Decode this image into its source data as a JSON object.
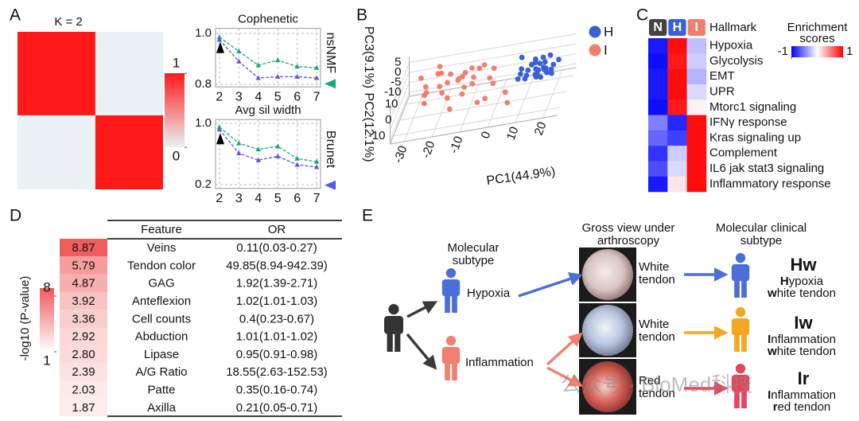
{
  "panel_labels": [
    "A",
    "B",
    "C",
    "D",
    "E"
  ],
  "chart_data": [
    {
      "type": "heatmap",
      "title": "K = 2",
      "values": [
        [
          1,
          0
        ],
        [
          0,
          1
        ]
      ],
      "colors": [
        "#e9f2f5",
        "#ff1a1a"
      ],
      "clim": [
        0,
        1
      ],
      "colorbar_ticks": [
        0,
        1
      ]
    },
    {
      "type": "line",
      "title": "Cophenetic",
      "x": [
        2,
        3,
        4,
        5,
        6,
        7
      ],
      "xlim": [
        1.8,
        7.2
      ],
      "xticks": [
        2,
        3,
        4,
        5,
        6,
        7
      ],
      "ylim": [
        0.79,
        1.02
      ],
      "yticks": [
        0.8,
        {
          "value": 1,
          "label": "1.0"
        }
      ],
      "grid": true,
      "series": [
        {
          "name": "nsNMF",
          "color": "#17a878",
          "values": [
            0.985,
            0.93,
            0.875,
            0.895,
            0.87,
            0.865
          ]
        },
        {
          "color": "#5b57e0",
          "values": [
            0.975,
            0.89,
            0.825,
            0.83,
            0.83,
            0.825
          ]
        }
      ]
    },
    {
      "type": "line",
      "title": "Avg sil width",
      "x": [
        2,
        3,
        4,
        5,
        6,
        7
      ],
      "xlim": [
        1.8,
        7.2
      ],
      "xticks": [
        2,
        3,
        4,
        5,
        6,
        7
      ],
      "ylim": [
        0.15,
        1.05
      ],
      "yticks": [
        0.2,
        {
          "value": 1,
          "label": "1.0"
        }
      ],
      "grid": true,
      "series": [
        {
          "color": "#17a878",
          "values": [
            0.95,
            0.74,
            0.66,
            0.7,
            0.54,
            0.5
          ]
        },
        {
          "name": "Brunet",
          "color": "#5b57e0",
          "values": [
            0.92,
            0.61,
            0.52,
            0.57,
            0.46,
            0.43
          ]
        }
      ]
    },
    {
      "type": "scatter3d",
      "x_label": "PC1(44.9%)",
      "y_label": "PC2(12.1%)",
      "z_label": "PC3(9.1%)",
      "xlim": [
        -35,
        25
      ],
      "ylim": [
        -15,
        15
      ],
      "zlim": [
        -12,
        8
      ],
      "xticks": [
        -30,
        -20,
        -10,
        0,
        10,
        20
      ],
      "yticks": [
        -10,
        0,
        10
      ],
      "zticks": [
        -10,
        -5,
        0,
        5
      ],
      "series": [
        {
          "name": "H",
          "color": "#3a5fd6",
          "x": [
            12,
            15,
            18,
            10,
            14,
            16,
            20,
            8,
            11,
            13,
            17,
            19,
            9,
            15,
            12,
            14,
            16,
            18,
            21,
            10,
            13,
            17,
            11,
            15,
            19,
            7,
            14,
            16,
            12,
            20
          ],
          "y": [
            2,
            -3,
            5,
            0,
            6,
            -5,
            1,
            4,
            -2,
            3,
            -6,
            2,
            -1,
            7,
            -4,
            0,
            3,
            -2,
            5,
            -7,
            4,
            1,
            6,
            -3,
            -5,
            2,
            -1,
            4,
            8,
            -2
          ],
          "z": [
            3,
            1,
            4,
            -2,
            0,
            5,
            2,
            6,
            1,
            -3,
            2,
            -1,
            4,
            2,
            5,
            -2,
            0,
            3,
            1,
            6,
            -1,
            4,
            0,
            2,
            3,
            -3,
            6,
            -2,
            1,
            0
          ]
        },
        {
          "name": "I",
          "color": "#f07f6e",
          "x": [
            -28,
            -25,
            -22,
            -20,
            -18,
            -15,
            -12,
            -10,
            -8,
            -5,
            -3,
            -26,
            -23,
            -19,
            -16,
            -14,
            -11,
            -7,
            -4,
            -1,
            -24,
            -21,
            -17,
            -13,
            -9,
            -6,
            -2,
            -27,
            -15,
            -10,
            5,
            2
          ],
          "y": [
            3,
            -5,
            6,
            0,
            -8,
            4,
            -2,
            7,
            -4,
            2,
            -6,
            -1,
            8,
            5,
            -3,
            1,
            -7,
            3,
            6,
            -2,
            -6,
            2,
            -4,
            7,
            0,
            -5,
            4,
            6,
            -9,
            -8,
            -6,
            4
          ],
          "z": [
            5,
            2,
            -3,
            8,
            4,
            0,
            6,
            -2,
            3,
            7,
            -4,
            -5,
            2,
            -1,
            9,
            3,
            1,
            5,
            -3,
            0,
            4,
            10,
            -2,
            1,
            8,
            -6,
            3,
            -2,
            -4,
            5,
            -8,
            -10
          ]
        }
      ]
    },
    {
      "type": "heatmap",
      "title": "Hallmark",
      "columns": [
        "N",
        "H",
        "I"
      ],
      "column_colors": [
        "#444444",
        "#3a5fd6",
        "#f07f6e"
      ],
      "rows": [
        "Hypoxia",
        "Glycolysis",
        "EMT",
        "UPR",
        "Mtorc1 signaling",
        "IFNγ response",
        "Kras signaling up",
        "Complement",
        "IL6 jak stat3 signaling",
        "Inflammatory response"
      ],
      "values": [
        [
          -0.9,
          0.95,
          -0.25
        ],
        [
          -0.95,
          0.9,
          -0.2
        ],
        [
          -0.9,
          0.95,
          -0.3
        ],
        [
          -0.9,
          0.95,
          -0.15
        ],
        [
          -0.95,
          0.9,
          0.05
        ],
        [
          -0.5,
          -0.85,
          0.95
        ],
        [
          -0.6,
          -0.75,
          0.95
        ],
        [
          -0.8,
          -0.2,
          0.95
        ],
        [
          -0.7,
          -0.15,
          0.95
        ],
        [
          -0.9,
          0.1,
          0.95
        ]
      ],
      "colorbar_title": [
        "Enrichment",
        "scores"
      ],
      "colors": [
        "#0000ff",
        "#ffffff",
        "#ff0000"
      ],
      "clim": [
        -1,
        1
      ],
      "colorbar_ticks": [
        -1,
        1
      ]
    }
  ],
  "table": {
    "columns": [
      "Feature",
      "OR"
    ],
    "rows": [
      [
        "Veins",
        "0.11(0.03-0.27)"
      ],
      [
        "Tendon color",
        "49.85(8.94-942.39)"
      ],
      [
        "GAG",
        "1.92(1.39-2.71)"
      ],
      [
        "Anteflexion",
        "1.02(1.01-1.03)"
      ],
      [
        "Cell counts",
        "0.4(0.23-0.67)"
      ],
      [
        "Abduction",
        "1.01(1.01-1.02)"
      ],
      [
        "Lipase",
        "0.95(0.91-0.98)"
      ],
      [
        "A/G Ratio",
        "18.55(2.63-152.53)"
      ],
      [
        "Patte",
        "0.35(0.16-0.74)"
      ],
      [
        "Axilla",
        "0.21(0.05-0.71)"
      ]
    ],
    "p_values": [
      8.87,
      5.79,
      4.87,
      3.92,
      3.36,
      2.92,
      {
        "value": 2.8,
        "label": "2.80"
      },
      2.39,
      2.03,
      1.87
    ],
    "colorbar_label": "-log10 (P-value)",
    "colorbar_ticks": [
      1,
      8
    ],
    "clim": [
      1,
      9
    ],
    "colors": [
      "#ffffff",
      "#f05a5a"
    ]
  },
  "diagram": {
    "headers": [
      [
        "Molecular",
        "subtype"
      ],
      [
        "Gross view under",
        "arthroscopy"
      ],
      [
        "Molecular clinical",
        "subtype"
      ]
    ],
    "subtypes": [
      "Hypoxia",
      "Inflammation"
    ],
    "views": [
      [
        "White",
        "tendon"
      ],
      [
        "White",
        "tendon"
      ],
      [
        "Red",
        "tendon"
      ]
    ],
    "clinical": [
      {
        "code": "Hw",
        "lines": [
          "Hypoxia",
          "white tendon"
        ]
      },
      {
        "code": "Iw",
        "lines": [
          "Inflammation",
          "white tendon"
        ]
      },
      {
        "code": "Ir",
        "lines": [
          "Inflammation",
          "red tendon"
        ]
      }
    ],
    "watermark": "公众号 · BioMed科技"
  }
}
